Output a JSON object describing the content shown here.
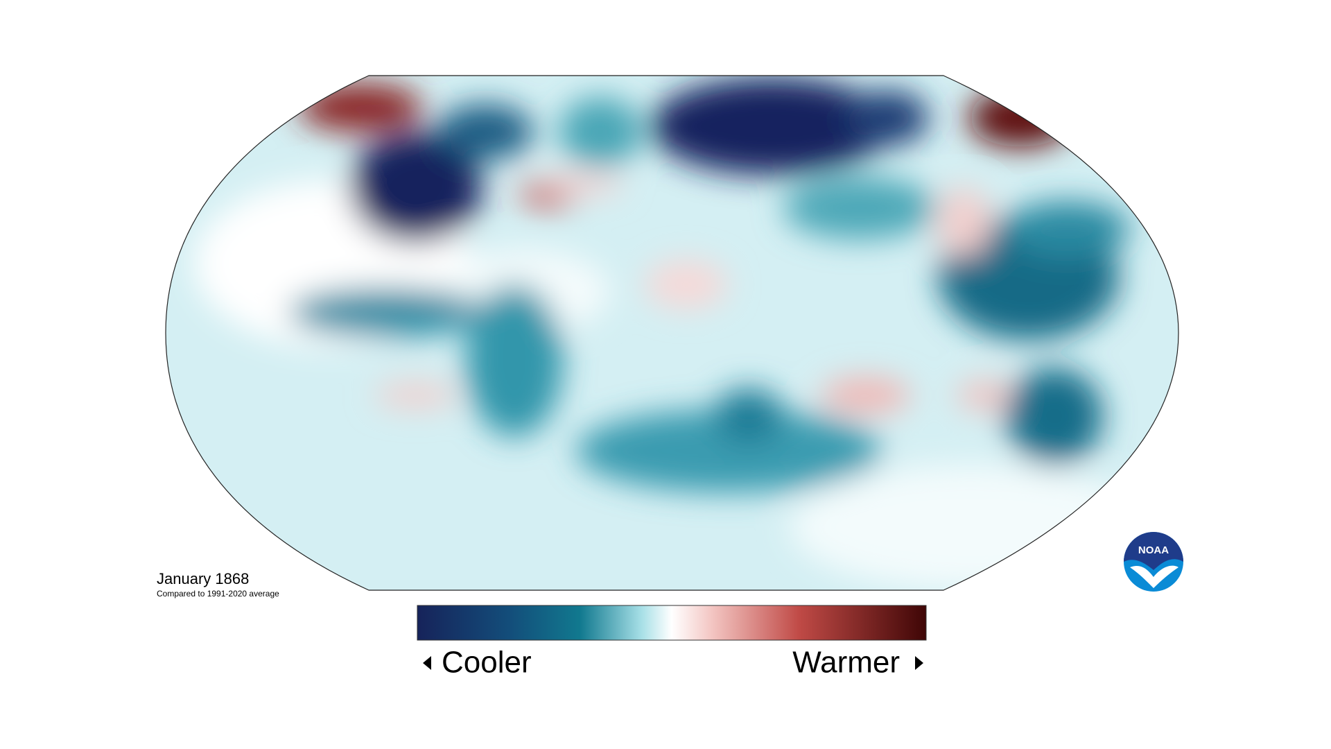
{
  "map": {
    "title": "January 1868",
    "subtitle": "Compared to 1991-2020 average"
  },
  "legend": {
    "low_label": "Cooler",
    "high_label": "Warmer"
  },
  "logo": {
    "text": "NOAA"
  }
}
